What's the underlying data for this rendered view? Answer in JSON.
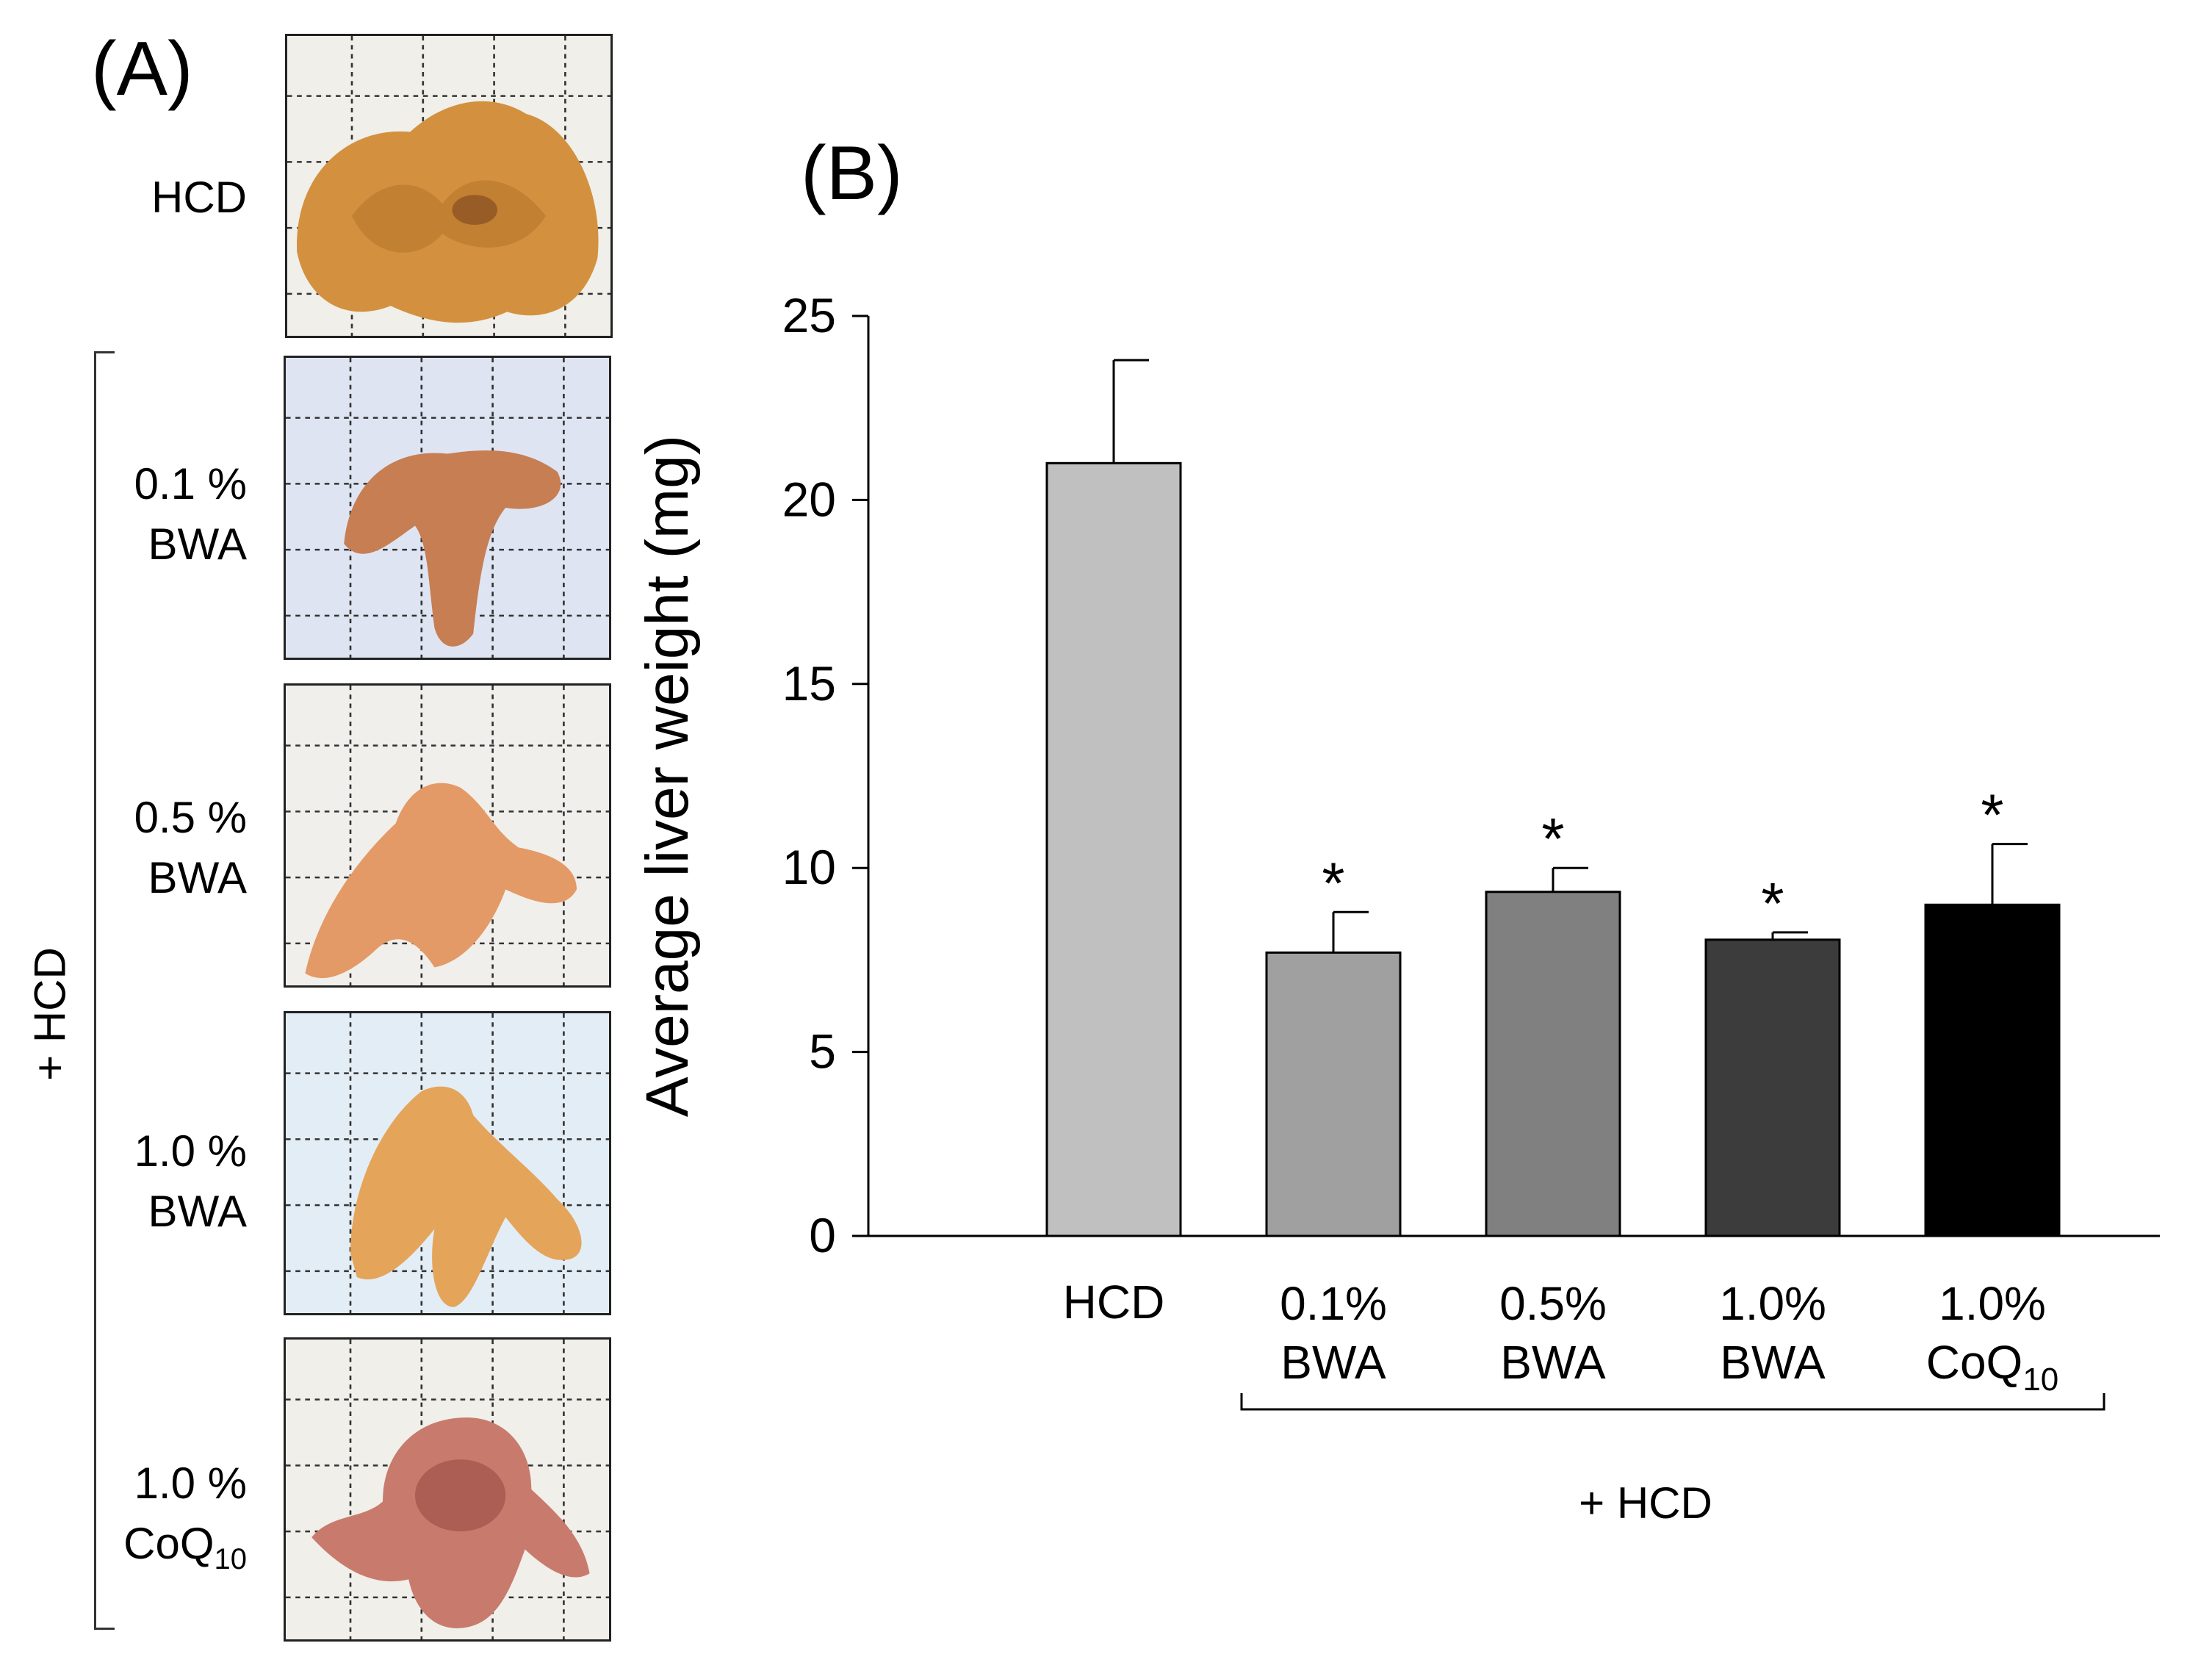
{
  "panel_a": {
    "label": "(A)",
    "groups": [
      {
        "line1": "HCD",
        "line2": "",
        "sub": ""
      },
      {
        "line1": "0.1 %",
        "line2": "BWA",
        "sub": ""
      },
      {
        "line1": "0.5 %",
        "line2": "BWA",
        "sub": ""
      },
      {
        "line1": "1.0 %",
        "line2": "BWA",
        "sub": ""
      },
      {
        "line1": "1.0 %",
        "line2": "CoQ",
        "sub": "10"
      }
    ],
    "bracket_label": "+ HCD"
  },
  "panel_b": {
    "label": "(B)",
    "bracket_label": "+ HCD"
  },
  "chart_data": {
    "type": "bar",
    "categories": [
      {
        "line1": "HCD",
        "line2": "",
        "sub": ""
      },
      {
        "line1": "0.1%",
        "line2": "BWA",
        "sub": ""
      },
      {
        "line1": "0.5%",
        "line2": "BWA",
        "sub": ""
      },
      {
        "line1": "1.0%",
        "line2": "BWA",
        "sub": ""
      },
      {
        "line1": "1.0%",
        "line2": "CoQ",
        "sub": "10"
      }
    ],
    "values": [
      21.0,
      7.7,
      9.35,
      8.05,
      9.0
    ],
    "errors": [
      2.8,
      1.1,
      0.65,
      0.2,
      1.65
    ],
    "significance": [
      "",
      "*",
      "*",
      "*",
      "*"
    ],
    "bar_colors": [
      "#c0c0c0",
      "#a0a0a0",
      "#808080",
      "#3c3c3c",
      "#000000"
    ],
    "ylabel": "Average liver weight (mg)",
    "xlabel": "",
    "ylim": [
      0,
      25
    ],
    "yticks": [
      0,
      5,
      10,
      15,
      20,
      25
    ],
    "grid": false,
    "legend": "none"
  }
}
